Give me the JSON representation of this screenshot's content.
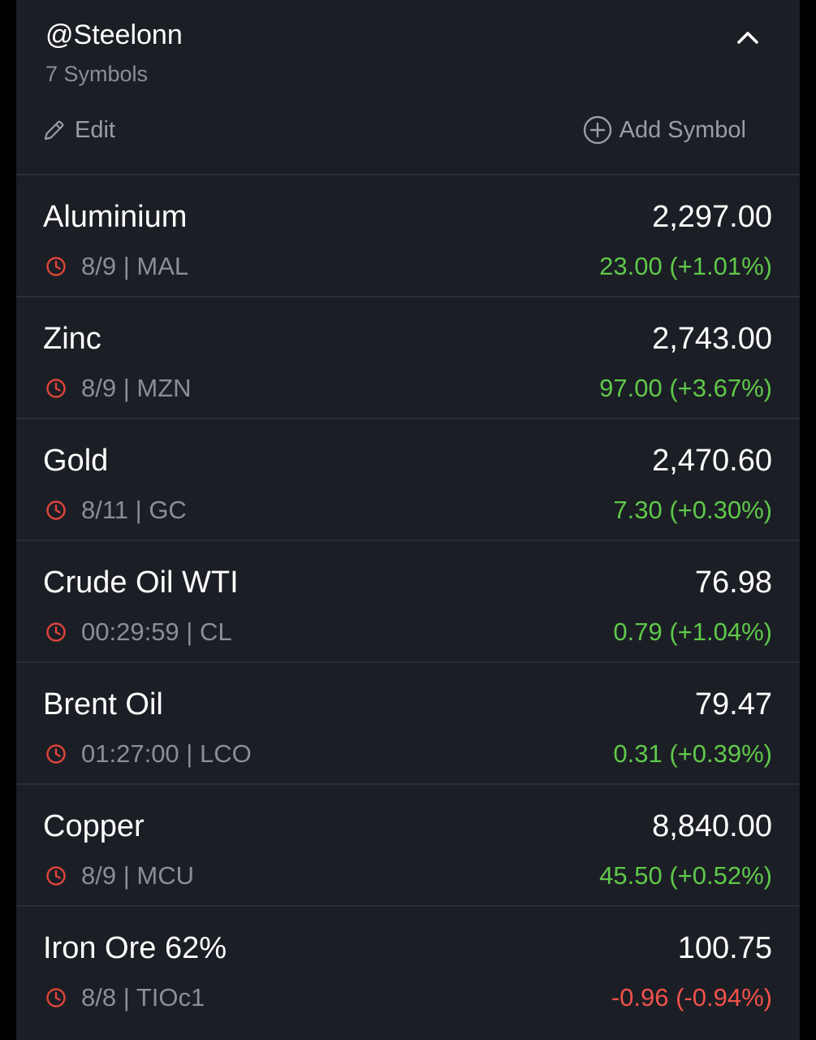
{
  "header": {
    "title": "@Steelonn",
    "subtitle": "7 Symbols",
    "edit_label": "Edit",
    "add_label": "Add Symbol"
  },
  "colors": {
    "background": "#1c1e25",
    "positive": "#5fc84a",
    "negative": "#f0524b",
    "clock": "#e0443c",
    "muted": "#8b8e96"
  },
  "icons": {
    "collapse": "chevron-up-icon",
    "edit": "pencil-icon",
    "add": "plus-circle-icon",
    "time": "clock-icon"
  },
  "symbols": [
    {
      "name": "Aluminium",
      "price": "2,297.00",
      "time": "8/9",
      "ticker": "MAL",
      "meta": "8/9 | MAL",
      "change": "23.00 (+1.01%)",
      "direction": "up"
    },
    {
      "name": "Zinc",
      "price": "2,743.00",
      "time": "8/9",
      "ticker": "MZN",
      "meta": "8/9 | MZN",
      "change": "97.00 (+3.67%)",
      "direction": "up"
    },
    {
      "name": "Gold",
      "price": "2,470.60",
      "time": "8/11",
      "ticker": "GC",
      "meta": "8/11 | GC",
      "change": "7.30 (+0.30%)",
      "direction": "up"
    },
    {
      "name": "Crude Oil WTI",
      "price": "76.98",
      "time": "00:29:59",
      "ticker": "CL",
      "meta": "00:29:59 | CL",
      "change": "0.79 (+1.04%)",
      "direction": "up"
    },
    {
      "name": "Brent Oil",
      "price": "79.47",
      "time": "01:27:00",
      "ticker": "LCO",
      "meta": "01:27:00 | LCO",
      "change": "0.31 (+0.39%)",
      "direction": "up"
    },
    {
      "name": "Copper",
      "price": "8,840.00",
      "time": "8/9",
      "ticker": "MCU",
      "meta": "8/9 | MCU",
      "change": "45.50 (+0.52%)",
      "direction": "up"
    },
    {
      "name": "Iron Ore 62%",
      "price": "100.75",
      "time": "8/8",
      "ticker": "TIOc1",
      "meta": "8/8 | TIOc1",
      "change": "-0.96 (-0.94%)",
      "direction": "down"
    }
  ]
}
